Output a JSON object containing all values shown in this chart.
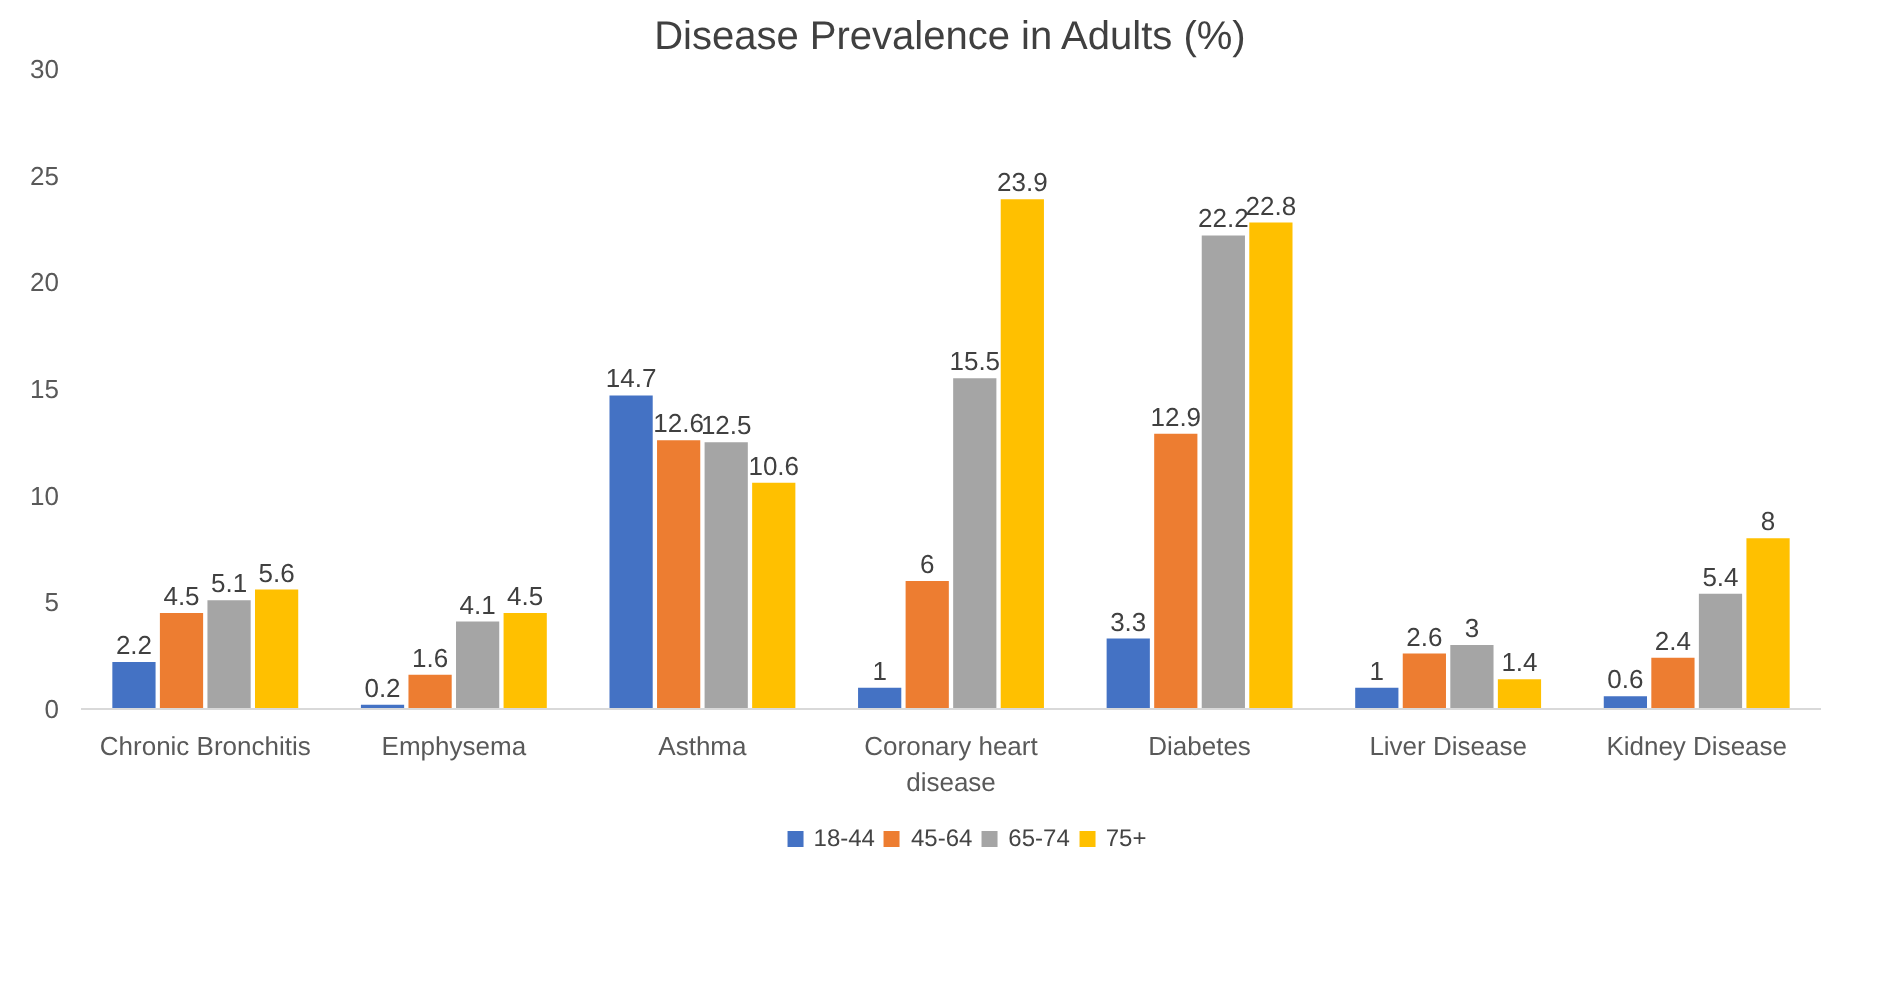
{
  "chart_data": {
    "type": "bar",
    "title": "Disease Prevalence in Adults (%)",
    "categories": [
      "Chronic Bronchitis",
      "Emphysema",
      "Asthma",
      "Coronary heart disease",
      "Diabetes",
      "Liver Disease",
      "Kidney Disease"
    ],
    "series": [
      {
        "name": "18-44",
        "color": "#4472c4",
        "values": [
          2.2,
          0.2,
          14.7,
          1,
          3.3,
          1,
          0.6
        ]
      },
      {
        "name": "45-64",
        "color": "#ed7d31",
        "values": [
          4.5,
          1.6,
          12.6,
          6,
          12.9,
          2.6,
          2.4
        ]
      },
      {
        "name": "65-74",
        "color": "#a5a5a5",
        "values": [
          5.1,
          4.1,
          12.5,
          15.5,
          22.2,
          3,
          5.4
        ]
      },
      {
        "name": "75+",
        "color": "#ffc000",
        "values": [
          5.6,
          4.5,
          10.6,
          23.9,
          22.8,
          1.4,
          8
        ]
      }
    ],
    "ylim": [
      0,
      30
    ],
    "yticks": [
      0,
      5,
      10,
      15,
      20,
      25,
      30
    ],
    "grid": false,
    "legend": "bottom",
    "data_labels": true
  }
}
